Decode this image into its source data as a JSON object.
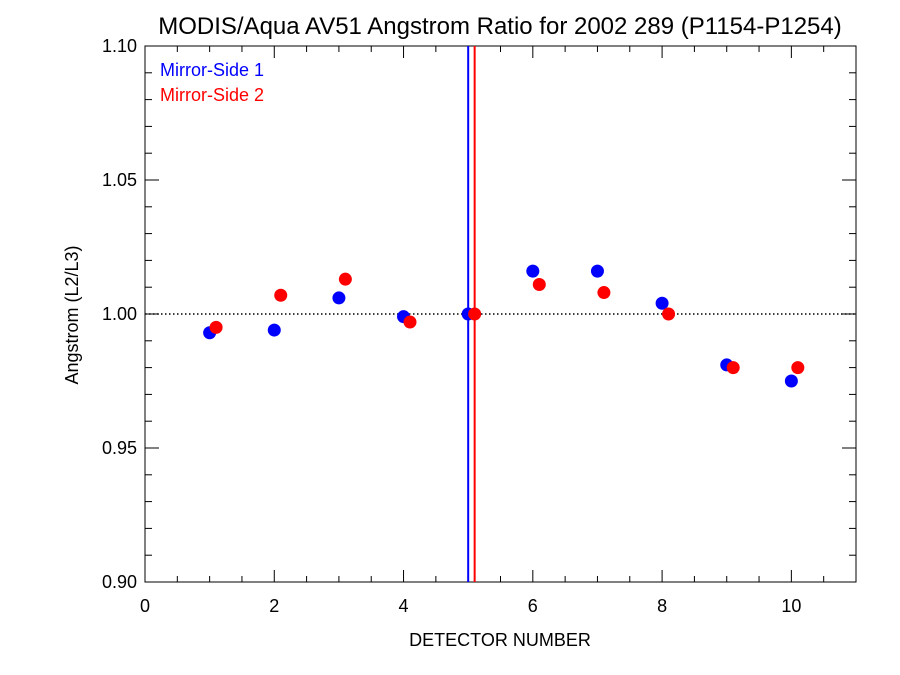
{
  "chart_data": {
    "type": "scatter",
    "title": "MODIS/Aqua AV51 Angstrom Ratio for 2002 289 (P1154-P1254)",
    "xlabel": "DETECTOR NUMBER",
    "ylabel": "Angstrom (L2/L3)",
    "xlim": [
      0,
      11
    ],
    "ylim": [
      0.9,
      1.1
    ],
    "x_ticks": [
      0,
      2,
      4,
      6,
      8,
      10
    ],
    "x_tick_labels": [
      "0",
      "2",
      "4",
      "6",
      "8",
      "10"
    ],
    "y_ticks": [
      0.9,
      0.95,
      1.0,
      1.05,
      1.1
    ],
    "y_tick_labels": [
      "0.90",
      "0.95",
      "1.00",
      "1.05",
      "1.10"
    ],
    "reference_line_y": 1.0,
    "legend_position": "top-left",
    "series": [
      {
        "name": "Mirror-Side 1",
        "color": "#0000ff",
        "x": [
          1,
          2,
          3,
          4,
          5,
          6,
          7,
          8,
          9,
          10
        ],
        "y": [
          0.993,
          0.994,
          1.006,
          0.999,
          1.0,
          1.016,
          1.016,
          1.004,
          0.981,
          0.975
        ],
        "vertical_line_x": 5.0
      },
      {
        "name": "Mirror-Side 2",
        "color": "#ff0000",
        "x": [
          1.1,
          2.1,
          3.1,
          4.1,
          5.1,
          6.1,
          7.1,
          8.1,
          9.1,
          10.1
        ],
        "y": [
          0.995,
          1.007,
          1.013,
          0.997,
          1.0,
          1.011,
          1.008,
          1.0,
          0.98,
          0.98
        ],
        "vertical_line_x": 5.1
      }
    ]
  }
}
